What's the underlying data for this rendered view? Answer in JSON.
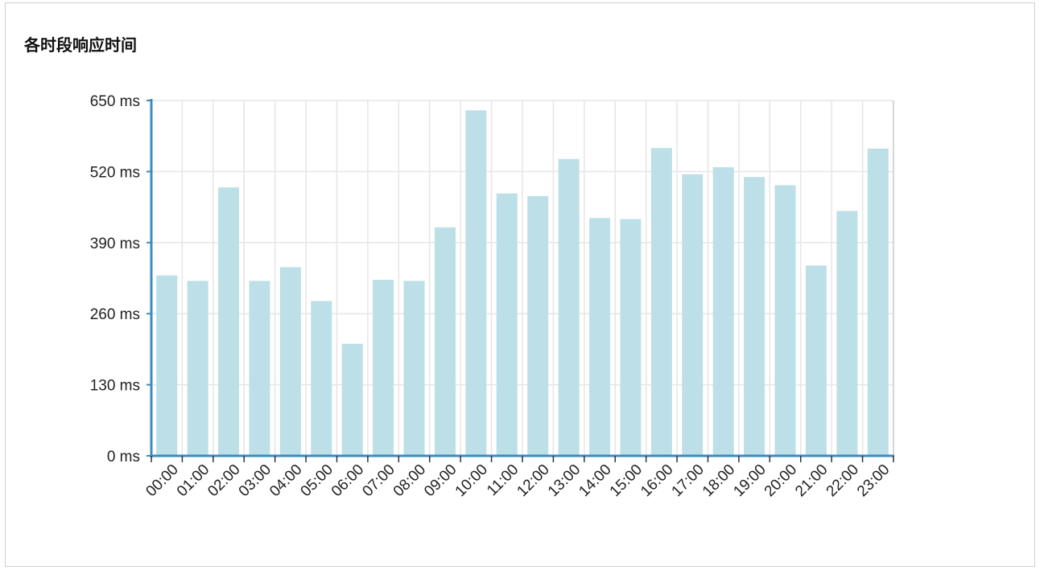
{
  "panel": {
    "title": "各时段响应时间"
  },
  "chart_data": {
    "type": "bar",
    "title": "各时段响应时间",
    "xlabel": "",
    "ylabel": "",
    "unit": "ms",
    "ylim": [
      0,
      650
    ],
    "yticks": [
      "0 ms",
      "130 ms",
      "260 ms",
      "390 ms",
      "520 ms",
      "650 ms"
    ],
    "ytick_values": [
      0,
      130,
      260,
      390,
      520,
      650
    ],
    "grid": true,
    "categories": [
      "00:00",
      "01:00",
      "02:00",
      "03:00",
      "04:00",
      "05:00",
      "06:00",
      "07:00",
      "08:00",
      "09:00",
      "10:00",
      "11:00",
      "12:00",
      "13:00",
      "14:00",
      "15:00",
      "16:00",
      "17:00",
      "18:00",
      "19:00",
      "20:00",
      "21:00",
      "22:00",
      "23:00"
    ],
    "values": [
      330,
      320,
      491,
      320,
      345,
      283,
      205,
      322,
      320,
      418,
      632,
      480,
      475,
      543,
      435,
      433,
      563,
      515,
      528,
      510,
      495,
      348,
      448,
      562
    ],
    "colors": {
      "bar": "#bcdfe8",
      "axis": "#3b8bbf",
      "grid": "#e6e6e6",
      "text": "#222222"
    }
  }
}
